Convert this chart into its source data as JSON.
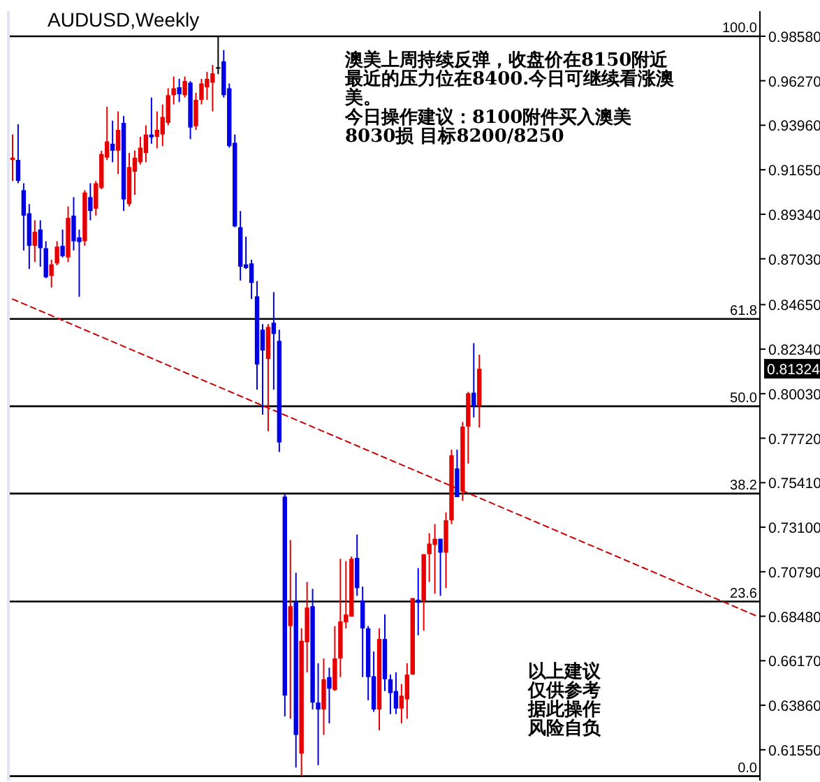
{
  "chart_data": {
    "type": "candlestick",
    "title": "AUDUSD,Weekly",
    "categories": [
      null,
      null,
      null,
      null,
      null,
      null,
      null,
      null,
      null,
      null,
      null,
      null,
      null,
      null,
      null,
      null,
      null,
      null,
      null,
      null,
      null,
      null,
      null,
      null,
      null,
      null,
      null,
      null,
      null,
      null,
      null,
      null,
      null,
      null,
      null,
      null,
      null,
      null,
      null,
      null,
      null,
      null,
      null,
      null,
      null,
      null,
      null,
      null,
      null,
      null,
      null,
      null,
      null,
      null,
      null,
      null,
      null,
      null,
      null,
      null,
      null,
      null,
      null,
      null,
      null,
      null,
      null,
      null,
      null,
      null,
      null,
      null,
      null,
      null,
      null,
      null,
      null,
      null,
      null,
      null,
      null,
      null,
      null,
      null,
      null,
      null,
      null,
      null,
      null,
      null,
      null,
      null,
      null,
      null,
      null,
      null,
      null,
      null,
      null,
      null,
      null,
      null,
      null,
      null,
      null,
      null,
      null,
      null,
      null,
      null,
      null,
      null,
      null,
      null,
      null,
      null,
      null,
      null,
      null,
      null,
      null,
      null,
      null,
      null,
      null,
      null,
      null,
      null,
      null,
      null,
      null,
      null,
      null,
      null,
      null
    ],
    "ylim": [
      0.5995,
      0.9988
    ],
    "y2lim": [
      -0.6,
      103.4
    ],
    "y2ticks": [
      {
        "value": 0,
        "label": "0.0"
      },
      {
        "value": 23.6,
        "label": "23.6"
      },
      {
        "value": 38.2,
        "label": "38.2"
      },
      {
        "value": 50,
        "label": "50.0"
      },
      {
        "value": 61.8,
        "label": "61.8"
      },
      {
        "value": 100,
        "label": "100.0"
      }
    ],
    "yticks": [
      {
        "value": 0.9858,
        "label": "0.98580"
      },
      {
        "value": 0.9627,
        "label": "0.96270"
      },
      {
        "value": 0.9396,
        "label": "0.93960"
      },
      {
        "value": 0.9165,
        "label": "0.91650"
      },
      {
        "value": 0.8934,
        "label": "0.89340"
      },
      {
        "value": 0.8703,
        "label": "0.87030"
      },
      {
        "value": 0.8465,
        "label": "0.84650"
      },
      {
        "value": 0.8234,
        "label": "0.82340"
      },
      {
        "value": 0.8003,
        "label": "0.80030"
      },
      {
        "value": 0.7772,
        "label": "0.77720"
      },
      {
        "value": 0.7541,
        "label": "0.75410"
      },
      {
        "value": 0.731,
        "label": "0.73100"
      },
      {
        "value": 0.7079,
        "label": "0.70790"
      },
      {
        "value": 0.6848,
        "label": "0.68480"
      },
      {
        "value": 0.6617,
        "label": "0.66170"
      },
      {
        "value": 0.6386,
        "label": "0.63860"
      },
      {
        "value": 0.6155,
        "label": "0.61550"
      }
    ],
    "tick_labels": "y",
    "series": [
      {
        "ohlc": [
          [
            0.9216,
            0.9348,
            0.9107,
            0.9228
          ],
          [
            0.9216,
            0.9401,
            0.9095,
            0.9107
          ],
          [
            0.9059,
            0.9095,
            0.8746,
            0.8927
          ],
          [
            0.8939,
            0.8987,
            0.865,
            0.877
          ],
          [
            0.877,
            0.8903,
            0.8686,
            0.8843
          ],
          [
            0.8855,
            0.8903,
            0.8662,
            0.8758
          ],
          [
            0.8758,
            0.8794,
            0.8602,
            0.8607
          ],
          [
            0.8614,
            0.8698,
            0.8554,
            0.8674
          ],
          [
            0.8679,
            0.8794,
            0.8669,
            0.8766
          ],
          [
            0.877,
            0.8855,
            0.871,
            0.8717
          ],
          [
            0.871,
            0.8975,
            0.8686,
            0.8915
          ],
          [
            0.8927,
            0.9023,
            0.8746,
            0.8794
          ],
          [
            0.8814,
            0.8855,
            0.8506,
            0.879
          ],
          [
            0.8794,
            0.9059,
            0.877,
            0.9047
          ],
          [
            0.9023,
            0.9095,
            0.8903,
            0.8951
          ],
          [
            0.8963,
            0.9107,
            0.8927,
            0.9095
          ],
          [
            0.9071,
            0.9264,
            0.9064,
            0.9247
          ],
          [
            0.9228,
            0.9492,
            0.9216,
            0.9312
          ],
          [
            0.93,
            0.942,
            0.9204,
            0.9264
          ],
          [
            0.9264,
            0.9468,
            0.9143,
            0.9372
          ],
          [
            0.9408,
            0.9444,
            0.8951,
            0.9011
          ],
          [
            0.8987,
            0.9252,
            0.8975,
            0.9179
          ],
          [
            0.9155,
            0.9264,
            0.9035,
            0.9228
          ],
          [
            0.9204,
            0.9336,
            0.9192,
            0.928
          ],
          [
            0.9252,
            0.9396,
            0.9204,
            0.9348
          ],
          [
            0.9348,
            0.954,
            0.93,
            0.9333
          ],
          [
            0.9336,
            0.9468,
            0.9276,
            0.9372
          ],
          [
            0.9348,
            0.9504,
            0.9288,
            0.9439
          ],
          [
            0.9408,
            0.9588,
            0.9396,
            0.9552
          ],
          [
            0.9552,
            0.9649,
            0.9504,
            0.9588
          ],
          [
            0.9593,
            0.9637,
            0.9516,
            0.9557
          ],
          [
            0.9552,
            0.9649,
            0.954,
            0.9625
          ],
          [
            0.9617,
            0.9625,
            0.9324,
            0.9384
          ],
          [
            0.9391,
            0.9564,
            0.9372,
            0.9528
          ],
          [
            0.9528,
            0.9637,
            0.9504,
            0.9613
          ],
          [
            0.9593,
            0.9673,
            0.9528,
            0.9637
          ],
          [
            0.9617,
            0.9709,
            0.9468,
            0.9665
          ],
          [
            0.9692,
            0.9858,
            0.9661,
            0.9697
          ],
          [
            0.9728,
            0.9786,
            0.954,
            0.9552
          ],
          [
            0.9588,
            0.9613,
            0.928,
            0.9288
          ],
          [
            0.9305,
            0.9348,
            0.8867,
            0.8871
          ],
          [
            0.8867,
            0.8951,
            0.859,
            0.8662
          ],
          [
            0.8674,
            0.8818,
            0.865,
            0.8655
          ],
          [
            0.8679,
            0.8698,
            0.8494,
            0.8578
          ],
          [
            0.8508,
            0.8587,
            0.8024,
            0.8154
          ],
          [
            0.8335,
            0.8364,
            0.7894,
            0.8227
          ],
          [
            0.8183,
            0.8364,
            0.7808,
            0.8349
          ],
          [
            0.8371,
            0.853,
            0.8024,
            0.8313
          ],
          [
            0.8277,
            0.8335,
            0.77,
            0.775
          ],
          [
            0.7469,
            0.7483,
            0.6328,
            0.6436
          ],
          [
            0.6797,
            0.7243,
            0.6316,
            0.69
          ],
          [
            0.6922,
            0.7074,
            0.6063,
            0.6232
          ],
          [
            0.6135,
            0.6785,
            0.6018,
            0.672
          ],
          [
            0.6713,
            0.7026,
            0.6557,
            0.6893
          ],
          [
            0.69,
            0.699,
            0.6364,
            0.64
          ],
          [
            0.64,
            0.6604,
            0.6075,
            0.6364
          ],
          [
            0.6364,
            0.6629,
            0.6232,
            0.6521
          ],
          [
            0.6532,
            0.6581,
            0.6292,
            0.6472
          ],
          [
            0.6465,
            0.6797,
            0.646,
            0.6629
          ],
          [
            0.6629,
            0.7146,
            0.6532,
            0.6821
          ],
          [
            0.6817,
            0.7134,
            0.6785,
            0.6857
          ],
          [
            0.6846,
            0.7158,
            0.6846,
            0.7146
          ],
          [
            0.7151,
            0.7272,
            0.6954,
            0.6994
          ],
          [
            0.6929,
            0.7002,
            0.6532,
            0.6785
          ],
          [
            0.6785,
            0.6797,
            0.6412,
            0.6532
          ],
          [
            0.6537,
            0.6665,
            0.6352,
            0.6364
          ],
          [
            0.6364,
            0.6785,
            0.6256,
            0.673
          ],
          [
            0.673,
            0.6857,
            0.646,
            0.6521
          ],
          [
            0.6521,
            0.6545,
            0.634,
            0.6449
          ],
          [
            0.646,
            0.6557,
            0.634,
            0.6369
          ],
          [
            0.6369,
            0.6496,
            0.6292,
            0.6436
          ],
          [
            0.6417,
            0.6604,
            0.6316,
            0.6545
          ],
          [
            0.6545,
            0.6942,
            0.6545,
            0.6942
          ],
          [
            0.6934,
            0.7098,
            0.6749,
            0.6918
          ],
          [
            0.6929,
            0.717,
            0.6773,
            0.717
          ],
          [
            0.717,
            0.7279,
            0.7026,
            0.7225
          ],
          [
            0.7218,
            0.7326,
            0.6965,
            0.725
          ],
          [
            0.725,
            0.725,
            0.6954,
            0.7178
          ],
          [
            0.7178,
            0.7387,
            0.6994,
            0.7346
          ],
          [
            0.7346,
            0.7712,
            0.7326,
            0.7683
          ],
          [
            0.7615,
            0.7712,
            0.7466,
            0.7466
          ],
          [
            0.7495,
            0.7856,
            0.7447,
            0.7832
          ],
          [
            0.7832,
            0.8012,
            0.764,
            0.8005
          ],
          [
            0.8008,
            0.8265,
            0.788,
            0.794
          ],
          [
            0.794,
            0.8205,
            0.7827,
            0.8132
          ],
          null,
          null,
          null,
          null,
          null,
          null,
          null,
          null,
          null,
          null,
          null,
          null,
          null,
          null,
          null,
          null,
          null,
          null,
          null,
          null,
          null,
          null,
          null,
          null,
          null,
          null,
          null,
          null,
          null,
          null,
          null,
          null,
          null,
          null,
          null,
          null,
          null,
          null,
          null,
          null,
          null,
          null,
          null,
          null,
          null,
          null,
          null,
          null,
          null,
          null
        ],
        "colors": [
          "#e60000",
          "#0000e6",
          "#0000e6",
          "#0000e6",
          "#e60000",
          "#0000e6",
          "#0000e6",
          "#e60000",
          "#e60000",
          "#0000e6",
          "#e60000",
          "#0000e6",
          "#0000e6",
          "#e60000",
          "#0000e6",
          "#e60000",
          "#e60000",
          "#e60000",
          "#0000e6",
          "#e60000",
          "#0000e6",
          "#e60000",
          "#e60000",
          "#e60000",
          "#e60000",
          "#0000e6",
          "#e60000",
          "#e60000",
          "#e60000",
          "#e60000",
          "#0000e6",
          "#e60000",
          "#0000e6",
          "#e60000",
          "#e60000",
          "#e60000",
          "#e60000",
          "#000000",
          "#0000e6",
          "#0000e6",
          "#0000e6",
          "#0000e6",
          "#0000e6",
          "#0000e6",
          "#0000e6",
          "#0000e6",
          "#e60000",
          "#0000e6",
          "#0000e6",
          "#0000e6",
          "#e60000",
          "#0000e6",
          "#e60000",
          "#e60000",
          "#0000e6",
          "#0000e6",
          "#e60000",
          "#0000e6",
          "#e60000",
          "#e60000",
          "#e60000",
          "#e60000",
          "#0000e6",
          "#0000e6",
          "#0000e6",
          "#0000e6",
          "#e60000",
          "#0000e6",
          "#0000e6",
          "#0000e6",
          "#e60000",
          "#e60000",
          "#e60000",
          "#0000e6",
          "#e60000",
          "#e60000",
          "#e60000",
          "#0000e6",
          "#e60000",
          "#e60000",
          "#0000e6",
          "#e60000",
          "#e60000",
          "#0000e6",
          "#e60000",
          null,
          null,
          null,
          null,
          null,
          null,
          null,
          null,
          null,
          null,
          null,
          null,
          null,
          null,
          null,
          null,
          null,
          null,
          null,
          null,
          null,
          null,
          null,
          null,
          null,
          null,
          null,
          null,
          null,
          null,
          null,
          null,
          null,
          null,
          null,
          null,
          null,
          null,
          null,
          null,
          null,
          null,
          null,
          null,
          null,
          null,
          null,
          null,
          null,
          null
        ]
      },
      {
        "type": "line",
        "color": "#cc0000",
        "line_style": "dashed",
        "values": [
          0.8494,
          null,
          null,
          null,
          null,
          null,
          null,
          null,
          null,
          null,
          null,
          null,
          null,
          null,
          null,
          null,
          null,
          null,
          null,
          null,
          null,
          null,
          null,
          null,
          null,
          null,
          null,
          null,
          null,
          null,
          null,
          null,
          null,
          null,
          null,
          null,
          null,
          null,
          null,
          null,
          null,
          null,
          null,
          null,
          null,
          null,
          null,
          null,
          null,
          null,
          null,
          null,
          null,
          null,
          null,
          null,
          null,
          null,
          null,
          null,
          null,
          null,
          null,
          null,
          null,
          null,
          null,
          null,
          null,
          null,
          null,
          null,
          null,
          null,
          null,
          null,
          null,
          null,
          null,
          null,
          null,
          null,
          null,
          null,
          null,
          null,
          null,
          null,
          null,
          null,
          null,
          null,
          null,
          null,
          null,
          null,
          null,
          null,
          null,
          null,
          null,
          null,
          null,
          null,
          null,
          null,
          null,
          null,
          null,
          null,
          null,
          null,
          null,
          null,
          null,
          null,
          null,
          null,
          null,
          null,
          null,
          null,
          null,
          null,
          null,
          null,
          null,
          null,
          null,
          null,
          null,
          null,
          null,
          null,
          0.6848
        ]
      }
    ],
    "ref_lines": [
      {
        "axis": "y2",
        "value": 100,
        "color": "#000000"
      },
      {
        "axis": "y2",
        "value": 61.8,
        "color": "#000000"
      },
      {
        "axis": "y2",
        "value": 50,
        "color": "#000000"
      },
      {
        "axis": "y2",
        "value": 38.2,
        "color": "#000000"
      },
      {
        "axis": "y2",
        "value": 23.6,
        "color": "#000000"
      },
      {
        "axis": "y2",
        "value": 0,
        "color": "#000000"
      }
    ],
    "annotations": [
      "澳美上周持续反弹，收盘价在8150附近最近的压力位在8400.今日可继续看涨澳美。",
      "今日操作建议：8100附件买入澳美8030损 目标8200/8250",
      "以上建议仅供参考据此操作风险自负",
      {
        "text": "0.81324",
        "y": 0.81324
      }
    ]
  }
}
